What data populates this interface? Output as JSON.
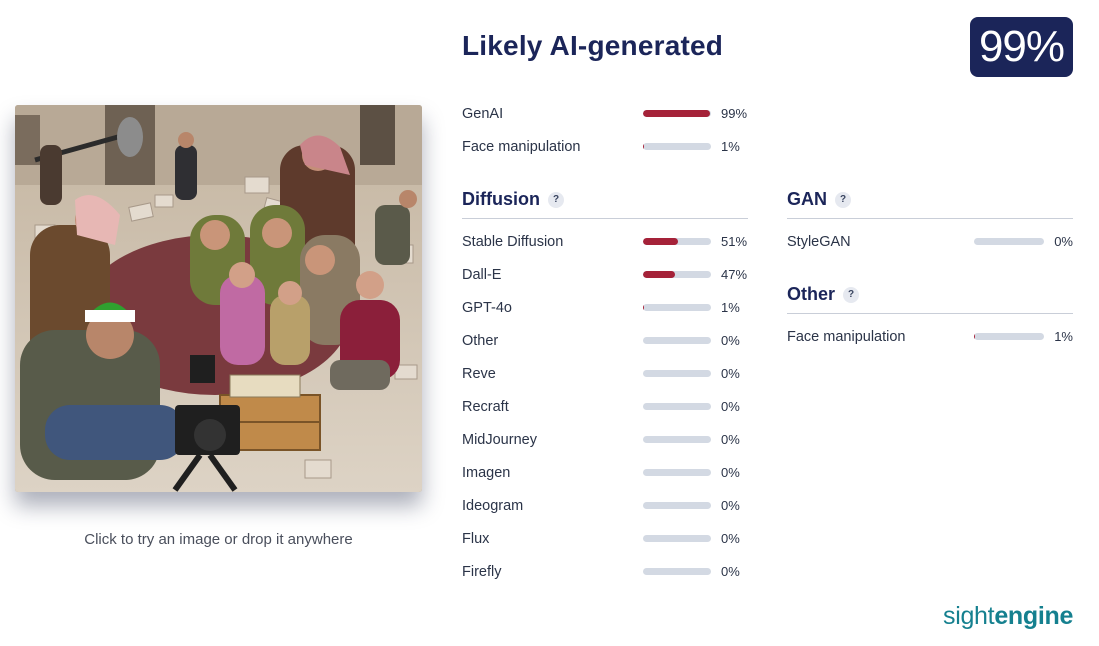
{
  "header": {
    "title": "Likely AI-generated",
    "score": "99%"
  },
  "upload": {
    "caption": "Click to try an image or drop it anywhere"
  },
  "summary": [
    {
      "label": "GenAI",
      "value": 0.99,
      "pct": "99%"
    },
    {
      "label": "Face manipulation",
      "value": 0.01,
      "pct": "1%"
    }
  ],
  "diffusion": {
    "title": "Diffusion",
    "help": "?",
    "items": [
      {
        "label": "Stable Diffusion",
        "value": 0.51,
        "pct": "51%"
      },
      {
        "label": "Dall-E",
        "value": 0.47,
        "pct": "47%"
      },
      {
        "label": "GPT-4o",
        "value": 0.01,
        "pct": "1%"
      },
      {
        "label": "Other",
        "value": 0,
        "pct": "0%"
      },
      {
        "label": "Reve",
        "value": 0,
        "pct": "0%"
      },
      {
        "label": "Recraft",
        "value": 0,
        "pct": "0%"
      },
      {
        "label": "MidJourney",
        "value": 0,
        "pct": "0%"
      },
      {
        "label": "Imagen",
        "value": 0,
        "pct": "0%"
      },
      {
        "label": "Ideogram",
        "value": 0,
        "pct": "0%"
      },
      {
        "label": "Flux",
        "value": 0,
        "pct": "0%"
      },
      {
        "label": "Firefly",
        "value": 0,
        "pct": "0%"
      }
    ]
  },
  "gan": {
    "title": "GAN",
    "help": "?",
    "items": [
      {
        "label": "StyleGAN",
        "value": 0,
        "pct": "0%"
      }
    ]
  },
  "other": {
    "title": "Other",
    "help": "?",
    "items": [
      {
        "label": "Face manipulation",
        "value": 0.01,
        "pct": "1%"
      }
    ]
  },
  "brand": {
    "part1": "sight",
    "part2": "engine"
  },
  "colors": {
    "navy": "#1b2559",
    "bar_fill": "#a52239",
    "bar_track": "#d3d9e3",
    "brand": "#15808f"
  }
}
